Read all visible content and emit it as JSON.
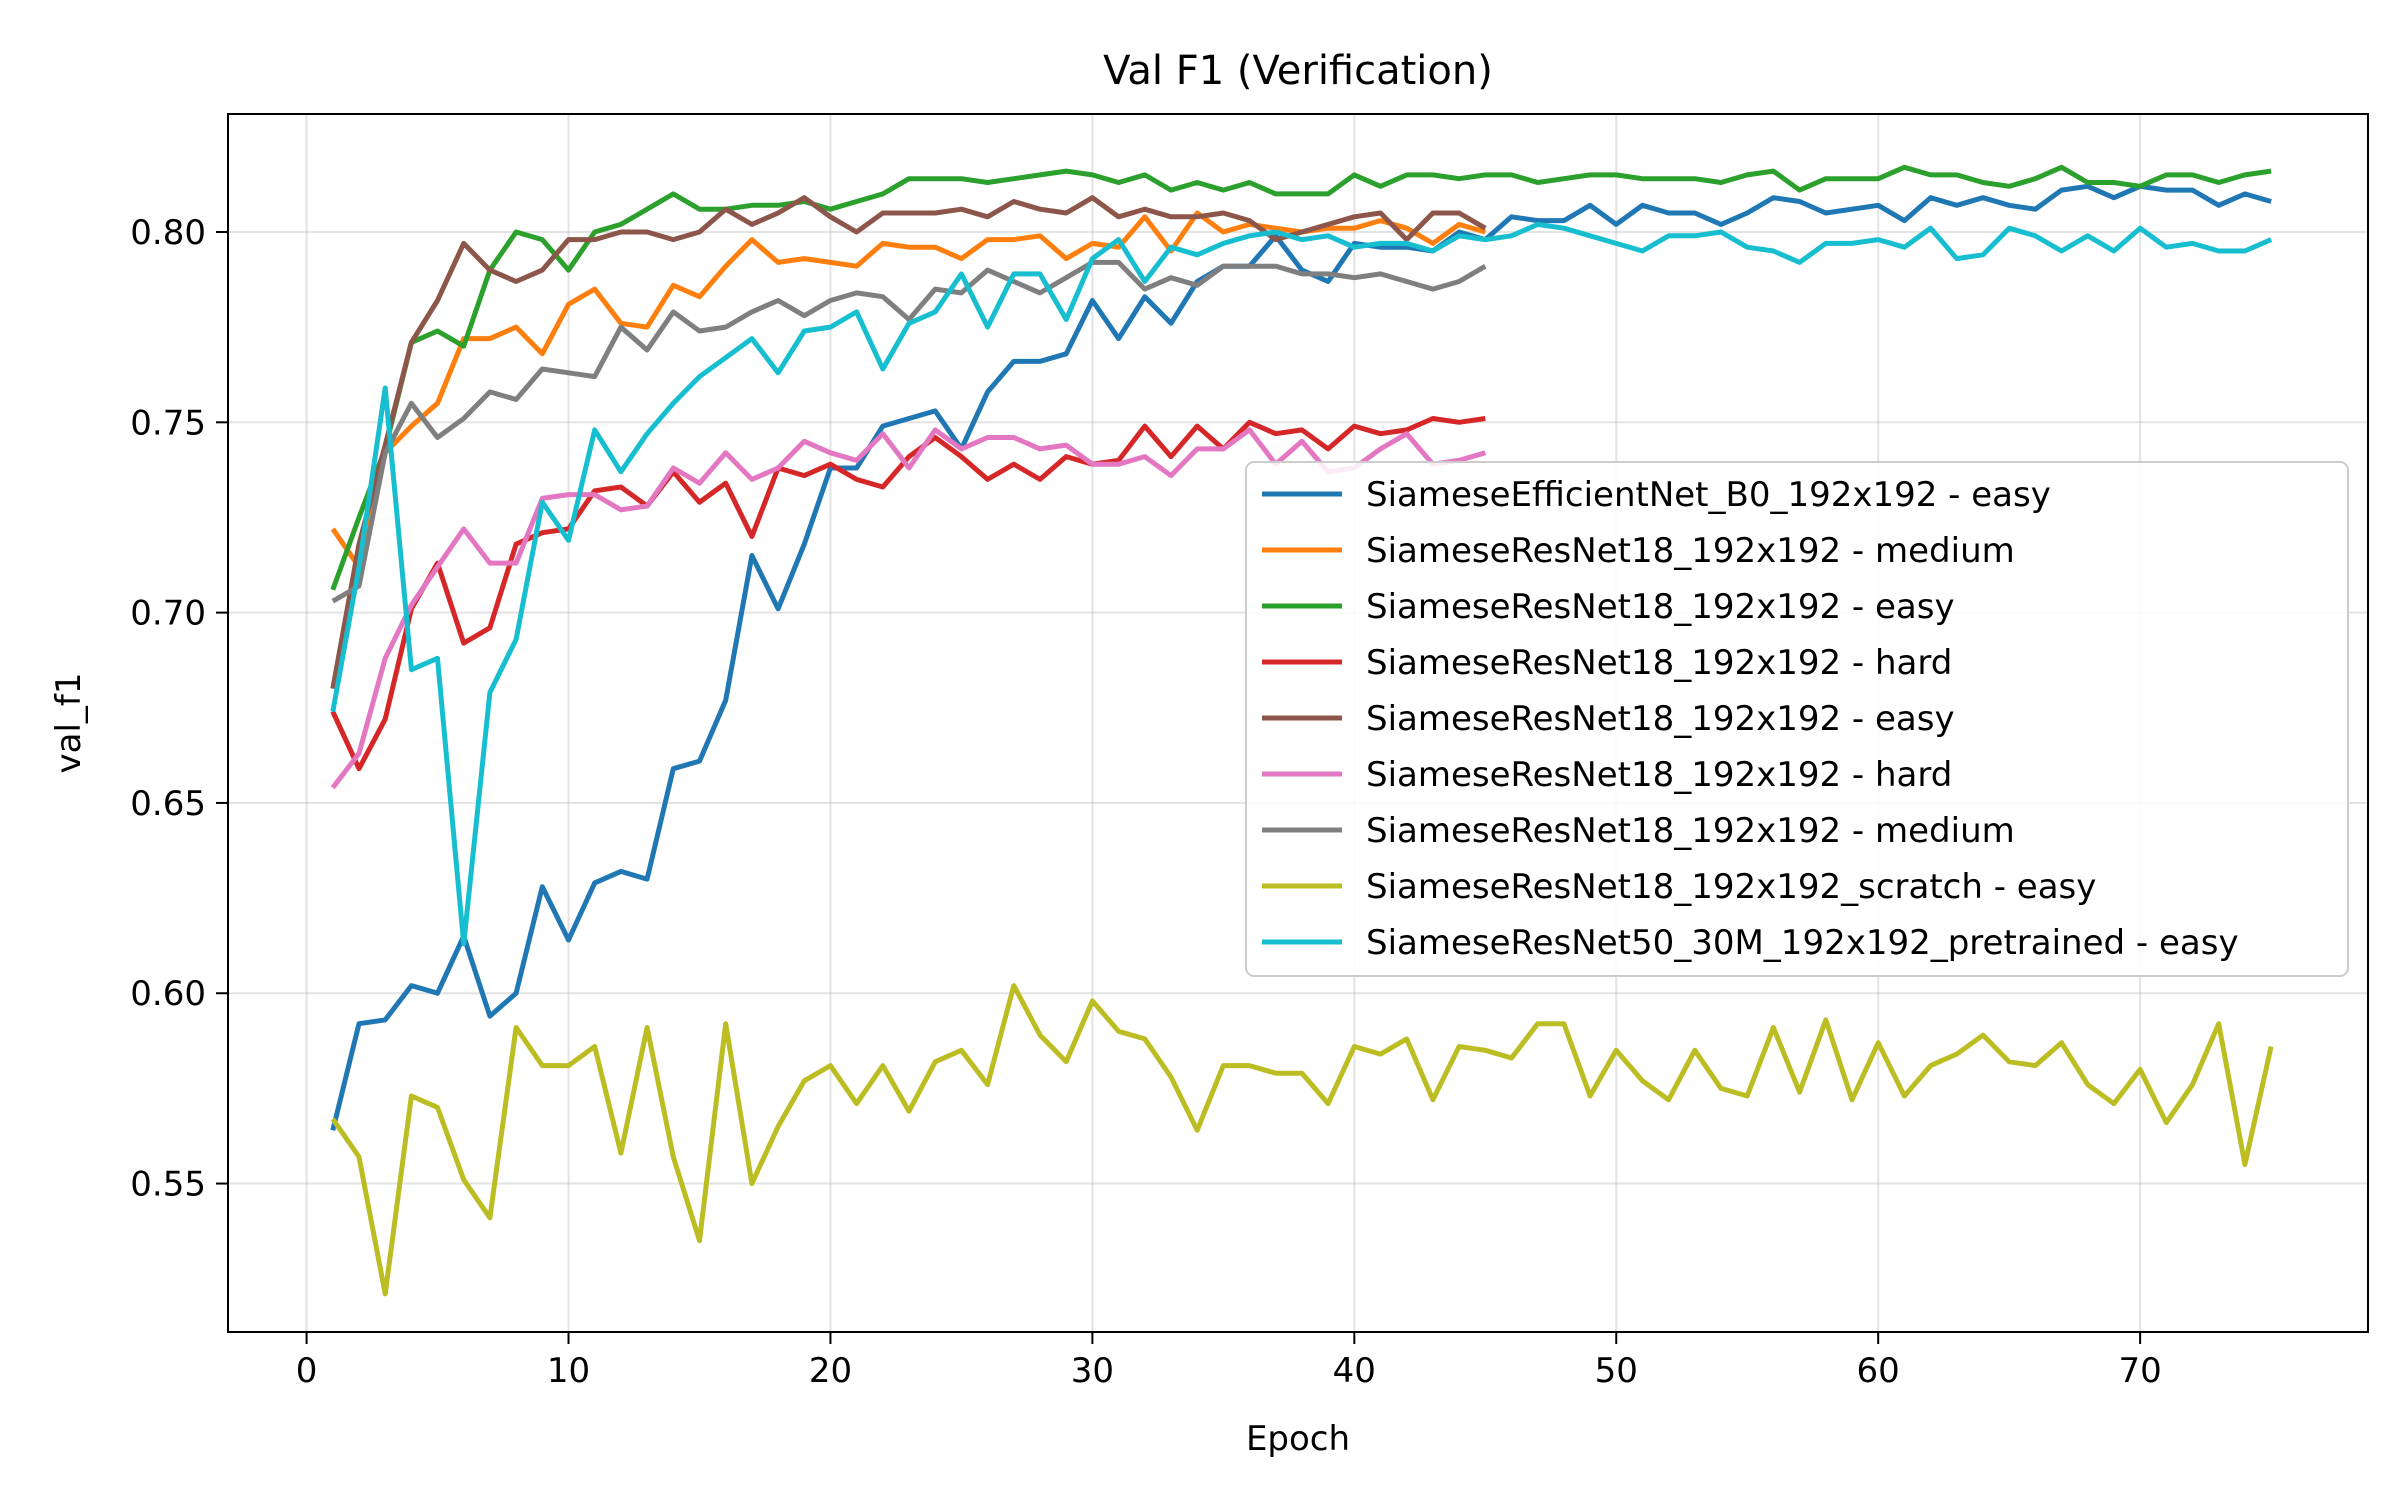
{
  "chart_data": {
    "type": "line",
    "title": "Val F1 (Verification)",
    "xlabel": "Epoch",
    "ylabel": "val_f1",
    "xlim": [
      -3,
      78.7
    ],
    "ylim": [
      0.511,
      0.831
    ],
    "xticks": [
      0,
      10,
      20,
      30,
      40,
      50,
      60,
      70
    ],
    "yticks": [
      0.55,
      0.6,
      0.65,
      0.7,
      0.75,
      0.8
    ],
    "ytick_labels": [
      "0.55",
      "0.60",
      "0.65",
      "0.70",
      "0.75",
      "0.80"
    ],
    "grid": true,
    "legend_position": "center-right",
    "series": [
      {
        "name": "SiameseEfficientNet_B0_192x192 - easy",
        "color": "#1f77b4",
        "values": [
          0.564,
          0.592,
          0.593,
          0.602,
          0.6,
          0.615,
          0.594,
          0.6,
          0.628,
          0.614,
          0.629,
          0.632,
          0.63,
          0.659,
          0.661,
          0.677,
          0.715,
          0.701,
          0.718,
          0.738,
          0.738,
          0.749,
          0.751,
          0.753,
          0.743,
          0.758,
          0.766,
          0.766,
          0.768,
          0.782,
          0.772,
          0.783,
          0.776,
          0.787,
          0.791,
          0.791,
          0.799,
          0.79,
          0.787,
          0.797,
          0.796,
          0.796,
          0.795,
          0.8,
          0.798,
          0.804,
          0.803,
          0.803,
          0.807,
          0.802,
          0.807,
          0.805,
          0.805,
          0.802,
          0.805,
          0.809,
          0.808,
          0.805,
          0.806,
          0.807,
          0.803,
          0.809,
          0.807,
          0.809,
          0.807,
          0.806,
          0.811,
          0.812,
          0.809,
          0.812,
          0.811,
          0.811,
          0.807,
          0.81,
          0.808
        ]
      },
      {
        "name": "SiameseResNet18_192x192 - medium",
        "color": "#ff7f0e",
        "values": [
          0.722,
          0.712,
          0.742,
          0.749,
          0.755,
          0.772,
          0.772,
          0.775,
          0.768,
          0.781,
          0.785,
          0.776,
          0.775,
          0.786,
          0.783,
          0.791,
          0.798,
          0.792,
          0.793,
          0.792,
          0.791,
          0.797,
          0.796,
          0.796,
          0.793,
          0.798,
          0.798,
          0.799,
          0.793,
          0.797,
          0.796,
          0.804,
          0.795,
          0.805,
          0.8,
          0.802,
          0.801,
          0.8,
          0.801,
          0.801,
          0.803,
          0.801,
          0.797,
          0.802,
          0.8
        ]
      },
      {
        "name": "SiameseResNet18_192x192 - easy",
        "color": "#2ca02c",
        "values": [
          0.706,
          0.725,
          0.743,
          0.771,
          0.774,
          0.77,
          0.79,
          0.8,
          0.798,
          0.79,
          0.8,
          0.802,
          0.806,
          0.81,
          0.806,
          0.806,
          0.807,
          0.807,
          0.808,
          0.806,
          0.808,
          0.81,
          0.814,
          0.814,
          0.814,
          0.813,
          0.814,
          0.815,
          0.816,
          0.815,
          0.813,
          0.815,
          0.811,
          0.813,
          0.811,
          0.813,
          0.81,
          0.81,
          0.81,
          0.815,
          0.812,
          0.815,
          0.815,
          0.814,
          0.815,
          0.815,
          0.813,
          0.814,
          0.815,
          0.815,
          0.814,
          0.814,
          0.814,
          0.813,
          0.815,
          0.816,
          0.811,
          0.814,
          0.814,
          0.814,
          0.817,
          0.815,
          0.815,
          0.813,
          0.812,
          0.814,
          0.817,
          0.813,
          0.813,
          0.812,
          0.815,
          0.815,
          0.813,
          0.815,
          0.816
        ]
      },
      {
        "name": "SiameseResNet18_192x192 - hard",
        "color": "#d62728",
        "values": [
          0.674,
          0.659,
          0.672,
          0.701,
          0.713,
          0.692,
          0.696,
          0.718,
          0.721,
          0.722,
          0.732,
          0.733,
          0.728,
          0.737,
          0.729,
          0.734,
          0.72,
          0.738,
          0.736,
          0.739,
          0.735,
          0.733,
          0.741,
          0.746,
          0.741,
          0.735,
          0.739,
          0.735,
          0.741,
          0.739,
          0.74,
          0.749,
          0.741,
          0.749,
          0.743,
          0.75,
          0.747,
          0.748,
          0.743,
          0.749,
          0.747,
          0.748,
          0.751,
          0.75,
          0.751
        ]
      },
      {
        "name": "SiameseResNet18_192x192 - easy",
        "color": "#8c564b",
        "values": [
          0.68,
          0.718,
          0.744,
          0.771,
          0.782,
          0.797,
          0.79,
          0.787,
          0.79,
          0.798,
          0.798,
          0.8,
          0.8,
          0.798,
          0.8,
          0.806,
          0.802,
          0.805,
          0.809,
          0.804,
          0.8,
          0.805,
          0.805,
          0.805,
          0.806,
          0.804,
          0.808,
          0.806,
          0.805,
          0.809,
          0.804,
          0.806,
          0.804,
          0.804,
          0.805,
          0.803,
          0.798,
          0.8,
          0.802,
          0.804,
          0.805,
          0.798,
          0.805,
          0.805,
          0.801
        ]
      },
      {
        "name": "SiameseResNet18_192x192 - hard",
        "color": "#e377c2",
        "values": [
          0.654,
          0.663,
          0.688,
          0.702,
          0.712,
          0.722,
          0.713,
          0.713,
          0.73,
          0.731,
          0.731,
          0.727,
          0.728,
          0.738,
          0.734,
          0.742,
          0.735,
          0.738,
          0.745,
          0.742,
          0.74,
          0.747,
          0.738,
          0.748,
          0.743,
          0.746,
          0.746,
          0.743,
          0.744,
          0.739,
          0.739,
          0.741,
          0.736,
          0.743,
          0.743,
          0.748,
          0.739,
          0.745,
          0.737,
          0.738,
          0.743,
          0.747,
          0.739,
          0.74,
          0.742
        ]
      },
      {
        "name": "SiameseResNet18_192x192 - medium",
        "color": "#7f7f7f",
        "values": [
          0.703,
          0.707,
          0.742,
          0.755,
          0.746,
          0.751,
          0.758,
          0.756,
          0.764,
          0.763,
          0.762,
          0.775,
          0.769,
          0.779,
          0.774,
          0.775,
          0.779,
          0.782,
          0.778,
          0.782,
          0.784,
          0.783,
          0.777,
          0.785,
          0.784,
          0.79,
          0.787,
          0.784,
          0.788,
          0.792,
          0.792,
          0.785,
          0.788,
          0.786,
          0.791,
          0.791,
          0.791,
          0.789,
          0.789,
          0.788,
          0.789,
          0.787,
          0.785,
          0.787,
          0.791
        ]
      },
      {
        "name": "SiameseResNet18_192x192_scratch - easy",
        "color": "#bcbd22",
        "values": [
          0.567,
          0.557,
          0.521,
          0.573,
          0.57,
          0.551,
          0.541,
          0.591,
          0.581,
          0.581,
          0.586,
          0.558,
          0.591,
          0.557,
          0.535,
          0.592,
          0.55,
          0.565,
          0.577,
          0.581,
          0.571,
          0.581,
          0.569,
          0.582,
          0.585,
          0.576,
          0.602,
          0.589,
          0.582,
          0.598,
          0.59,
          0.588,
          0.578,
          0.564,
          0.581,
          0.581,
          0.579,
          0.579,
          0.571,
          0.586,
          0.584,
          0.588,
          0.572,
          0.586,
          0.585,
          0.583,
          0.592,
          0.592,
          0.573,
          0.585,
          0.577,
          0.572,
          0.585,
          0.575,
          0.573,
          0.591,
          0.574,
          0.593,
          0.572,
          0.587,
          0.573,
          0.581,
          0.584,
          0.589,
          0.582,
          0.581,
          0.587,
          0.576,
          0.571,
          0.58,
          0.566,
          0.576,
          0.592,
          0.555,
          0.586
        ]
      },
      {
        "name": "SiameseResNet50_30M_192x192_pretrained - easy",
        "color": "#17becf",
        "values": [
          0.674,
          0.712,
          0.759,
          0.685,
          0.688,
          0.613,
          0.679,
          0.693,
          0.729,
          0.719,
          0.748,
          0.737,
          0.747,
          0.755,
          0.762,
          0.767,
          0.772,
          0.763,
          0.774,
          0.775,
          0.779,
          0.764,
          0.776,
          0.779,
          0.789,
          0.775,
          0.789,
          0.789,
          0.777,
          0.793,
          0.798,
          0.787,
          0.796,
          0.794,
          0.797,
          0.799,
          0.8,
          0.798,
          0.799,
          0.796,
          0.797,
          0.797,
          0.795,
          0.799,
          0.798,
          0.799,
          0.802,
          0.801,
          0.799,
          0.797,
          0.795,
          0.799,
          0.799,
          0.8,
          0.796,
          0.795,
          0.792,
          0.797,
          0.797,
          0.798,
          0.796,
          0.801,
          0.793,
          0.794,
          0.801,
          0.799,
          0.795,
          0.799,
          0.795,
          0.801,
          0.796,
          0.797,
          0.795,
          0.795,
          0.798
        ]
      }
    ]
  }
}
